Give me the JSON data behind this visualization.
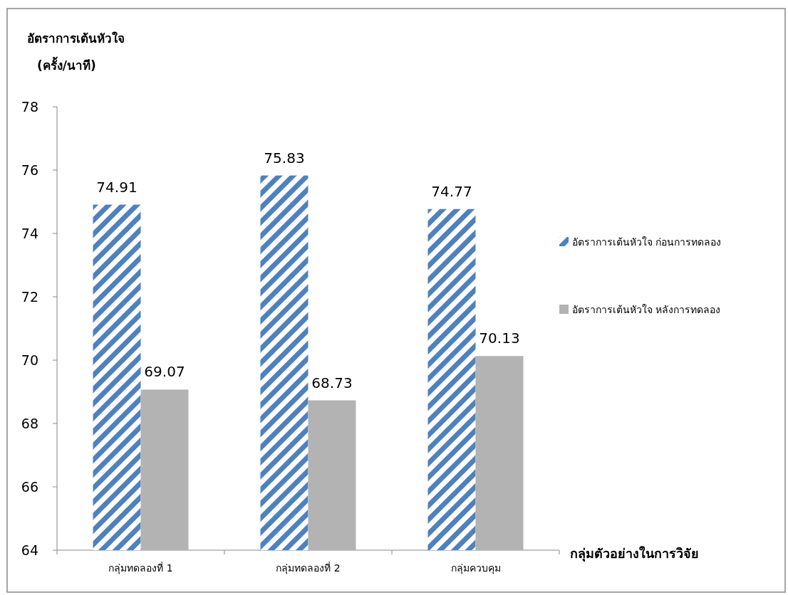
{
  "chart_data": {
    "type": "bar",
    "ylabel": "อัตราการเต้นหัวใจ (ครั้ง/นาที)",
    "xlabel": "กลุ่มตัวอย่างในการวิจัย",
    "categories": [
      "กลุ่มทดลองที่ 1",
      "กลุ่มทดลองที่ 2",
      "กลุ่มควบคุม"
    ],
    "series": [
      {
        "name": "อัตราการเต้นหัวใจ ก่อนการทดลอง",
        "color": "#4f81bd",
        "values": [
          74.91,
          75.83,
          74.77
        ]
      },
      {
        "name": "อัตราการเต้นหัวใจ หลังการทดลอง",
        "color": "#b3b3b3",
        "values": [
          69.07,
          68.73,
          70.13
        ]
      }
    ],
    "ylim": [
      64,
      78
    ],
    "yticks": [
      64,
      66,
      68,
      70,
      72,
      74,
      76,
      78
    ],
    "data_labels": true,
    "grid": false,
    "legend": "right"
  }
}
